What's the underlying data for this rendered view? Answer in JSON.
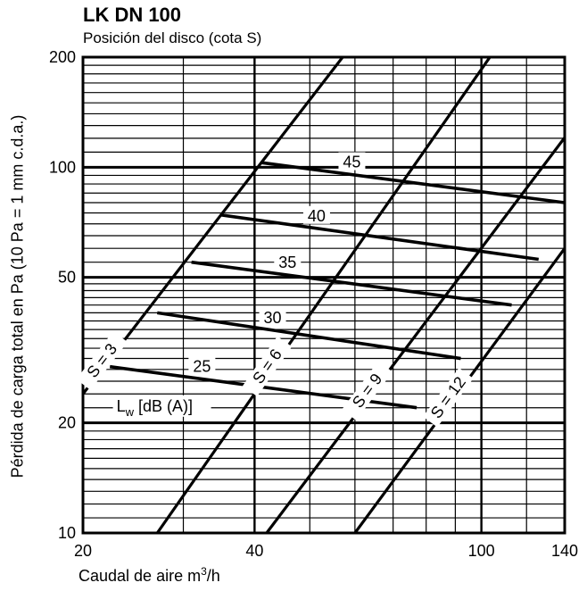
{
  "chart_data": {
    "type": "line",
    "title": "LK DN 100",
    "subtitle": "Posición del disco (cota S)",
    "xlabel": "Caudal de aire m",
    "xlabel_sup": "3",
    "xlabel_suffix": "/h",
    "ylabel": "Pérdida de carga total en Pa (10 Pa = 1 mm c.d.a.)",
    "x_scale": "log",
    "y_scale": "log",
    "xlim": [
      20,
      140
    ],
    "ylim": [
      10,
      200
    ],
    "x_ticks": [
      20,
      40,
      100,
      140
    ],
    "y_ticks": [
      10,
      20,
      50,
      100,
      200
    ],
    "x_grid_minor": [
      30,
      50,
      60,
      70,
      80,
      90,
      120
    ],
    "y_grid_minor": [
      11,
      12,
      13,
      14,
      15,
      16,
      17,
      18,
      19,
      22,
      24,
      26,
      28,
      30,
      32,
      34,
      36,
      38,
      40,
      42,
      44,
      46,
      48,
      55,
      60,
      65,
      70,
      75,
      80,
      85,
      90,
      95,
      110,
      120,
      130,
      140,
      150,
      160,
      170,
      180,
      190
    ],
    "grid": true,
    "position_series": [
      {
        "name": "S = 3",
        "x": [
          20,
          57.1
        ],
        "y": [
          24,
          200
        ]
      },
      {
        "name": "S = 6",
        "x": [
          27,
          103.5
        ],
        "y": [
          10,
          200
        ]
      },
      {
        "name": "S = 9",
        "x": [
          42,
          140
        ],
        "y": [
          10,
          120.5
        ]
      },
      {
        "name": "S = 12",
        "x": [
          60,
          140
        ],
        "y": [
          10,
          60
        ]
      }
    ],
    "sound_series": [
      {
        "name": "45",
        "x": [
          41,
          140
        ],
        "y": [
          103,
          80
        ]
      },
      {
        "name": "40",
        "x": [
          35,
          126
        ],
        "y": [
          74,
          56
        ]
      },
      {
        "name": "35",
        "x": [
          31,
          113
        ],
        "y": [
          55,
          42
        ]
      },
      {
        "name": "30",
        "x": [
          27,
          92
        ],
        "y": [
          40,
          30
        ]
      },
      {
        "name": "25",
        "x": [
          22.3,
          77
        ],
        "y": [
          28.5,
          22
        ]
      }
    ],
    "annotations": [
      "Lw [dB (A)]"
    ]
  }
}
